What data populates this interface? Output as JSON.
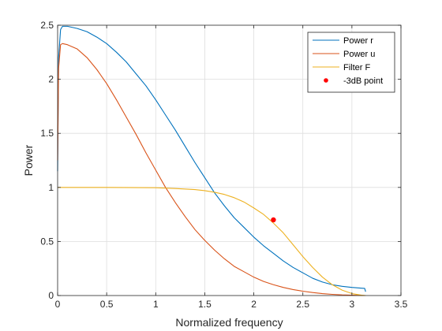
{
  "colors": {
    "axis": "#262626",
    "grid": "#dedede",
    "power_r": "#0072bd",
    "power_u": "#d95319",
    "filter_f": "#edb120",
    "point": "#ff0000"
  },
  "chart_data": {
    "type": "line",
    "xlabel": "Normalized frequency",
    "ylabel": "Power",
    "xlim": [
      0,
      3.5
    ],
    "ylim": [
      0,
      2.5
    ],
    "x_ticks": [
      0,
      0.5,
      1,
      1.5,
      2,
      2.5,
      3,
      3.5
    ],
    "y_ticks": [
      0,
      0.5,
      1,
      1.5,
      2,
      2.5
    ],
    "x_tick_labels": [
      "0",
      "0.5",
      "1",
      "1.5",
      "2",
      "2.5",
      "3",
      "3.5"
    ],
    "y_tick_labels": [
      "0",
      "0.5",
      "1",
      "1.5",
      "2",
      "2.5"
    ],
    "grid": true,
    "legend_position": "top-right",
    "series": [
      {
        "name": "Power r",
        "color": "#0072bd",
        "x": [
          0,
          0.01,
          0.03,
          0.05,
          0.1,
          0.2,
          0.3,
          0.4,
          0.5,
          0.6,
          0.7,
          0.8,
          0.9,
          1.0,
          1.1,
          1.2,
          1.3,
          1.4,
          1.5,
          1.6,
          1.7,
          1.8,
          1.9,
          2.0,
          2.1,
          2.2,
          2.3,
          2.4,
          2.5,
          2.6,
          2.7,
          2.8,
          2.9,
          3.0,
          3.1,
          3.13,
          3.14
        ],
        "y": [
          1.15,
          2.2,
          2.46,
          2.49,
          2.49,
          2.47,
          2.44,
          2.39,
          2.33,
          2.25,
          2.16,
          2.05,
          1.94,
          1.81,
          1.67,
          1.53,
          1.38,
          1.23,
          1.09,
          0.95,
          0.83,
          0.72,
          0.63,
          0.54,
          0.46,
          0.39,
          0.32,
          0.26,
          0.21,
          0.16,
          0.125,
          0.1,
          0.085,
          0.075,
          0.068,
          0.066,
          0.035
        ]
      },
      {
        "name": "Power u",
        "color": "#d95319",
        "x": [
          0,
          0.01,
          0.03,
          0.05,
          0.1,
          0.2,
          0.3,
          0.4,
          0.5,
          0.6,
          0.7,
          0.8,
          0.9,
          1.0,
          1.1,
          1.2,
          1.3,
          1.4,
          1.5,
          1.6,
          1.7,
          1.8,
          1.9,
          2.0,
          2.1,
          2.2,
          2.3,
          2.4,
          2.5,
          2.6,
          2.7,
          2.8,
          2.9,
          3.0,
          3.14
        ],
        "y": [
          1.25,
          2.1,
          2.32,
          2.33,
          2.32,
          2.28,
          2.2,
          2.09,
          1.96,
          1.81,
          1.65,
          1.49,
          1.32,
          1.16,
          1.0,
          0.86,
          0.73,
          0.61,
          0.51,
          0.42,
          0.34,
          0.27,
          0.22,
          0.17,
          0.13,
          0.1,
          0.075,
          0.055,
          0.04,
          0.028,
          0.018,
          0.011,
          0.006,
          0.003,
          0.0
        ]
      },
      {
        "name": "Filter F",
        "color": "#edb120",
        "x": [
          0,
          0.5,
          1.0,
          1.2,
          1.4,
          1.5,
          1.6,
          1.7,
          1.8,
          1.9,
          2.0,
          2.1,
          2.2,
          2.3,
          2.4,
          2.5,
          2.6,
          2.7,
          2.8,
          2.9,
          3.0,
          3.1,
          3.14
        ],
        "y": [
          1.0,
          1.0,
          0.997,
          0.99,
          0.98,
          0.97,
          0.955,
          0.935,
          0.905,
          0.865,
          0.81,
          0.75,
          0.67,
          0.58,
          0.47,
          0.36,
          0.26,
          0.17,
          0.1,
          0.05,
          0.018,
          0.003,
          0.0
        ]
      },
      {
        "name": "-3dB point",
        "color": "#ff0000",
        "marker": "dot",
        "x": [
          2.2
        ],
        "y": [
          0.7
        ]
      }
    ]
  }
}
